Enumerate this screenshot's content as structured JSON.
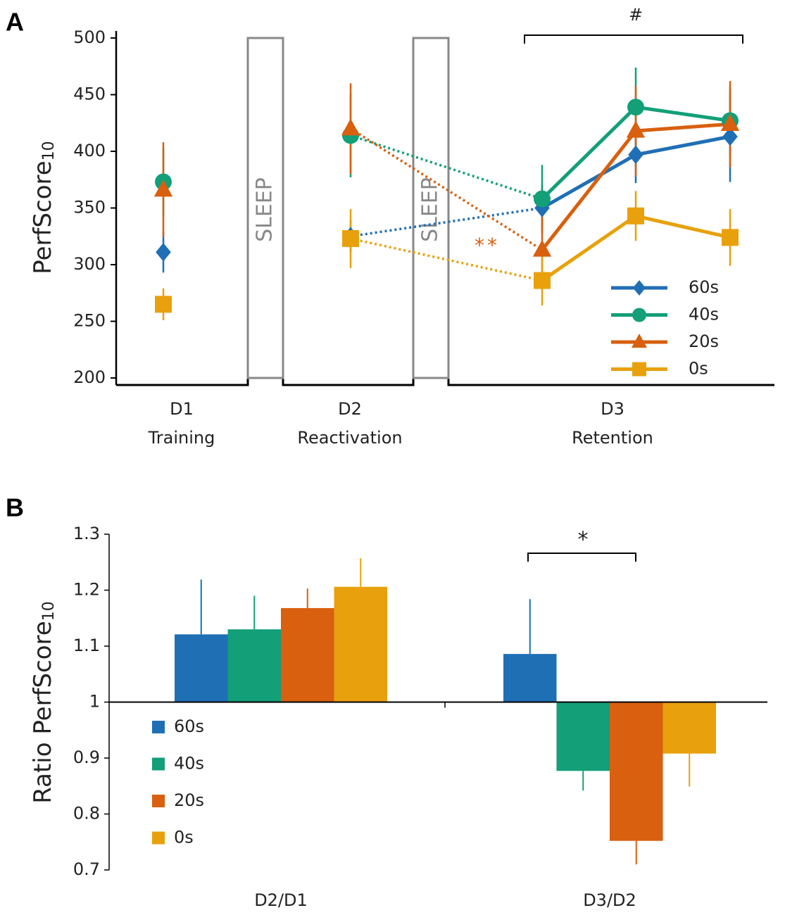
{
  "chart_data": [
    {
      "type": "line",
      "panel": "A",
      "y_label": "PerfScore",
      "y_label_sub": "10",
      "categories": [
        [
          "D1",
          "Training"
        ],
        [
          "D2",
          "Reactivation"
        ],
        null,
        [
          "D3",
          "Retention"
        ],
        null
      ],
      "ylim": [
        200,
        500
      ],
      "yticks": [
        200,
        250,
        300,
        350,
        400,
        450,
        500
      ],
      "blocks": [
        "SLEEP",
        "SLEEP"
      ],
      "annotations": [
        "#",
        "**"
      ],
      "legend": "lower right",
      "series": [
        {
          "name": "60s",
          "color": "#1f6fb5",
          "marker": "diamond",
          "values": [
            311,
            325,
            350,
            397,
            413
          ],
          "errors": [
            18,
            14,
            20,
            25,
            40
          ]
        },
        {
          "name": "40s",
          "color": "#139f78",
          "marker": "circle",
          "values": [
            373,
            414,
            358,
            439,
            427
          ],
          "errors": [
            30,
            37,
            30,
            35,
            30
          ]
        },
        {
          "name": "20s",
          "color": "#d8600f",
          "marker": "triangle",
          "values": [
            366,
            420,
            313,
            418,
            424
          ],
          "errors": [
            42,
            40,
            35,
            40,
            38
          ]
        },
        {
          "name": "0s",
          "color": "#e8a10c",
          "marker": "square",
          "values": [
            265,
            323,
            286,
            343,
            324
          ],
          "errors": [
            14,
            26,
            22,
            22,
            25
          ]
        }
      ]
    },
    {
      "type": "bar",
      "panel": "B",
      "y_label": "Ratio PerfScore",
      "y_label_sub": "10",
      "categories": [
        "D2/D1",
        "D3/D2"
      ],
      "ylim": [
        0.7,
        1.3
      ],
      "yticks": [
        0.7,
        0.8,
        0.9,
        1,
        1.1,
        1.2,
        1.3
      ],
      "baseline": 1,
      "annotations": [
        "*"
      ],
      "legend": "lower left",
      "series": [
        {
          "name": "60s",
          "color": "#1f6fb5",
          "values": [
            1.121,
            1.086
          ],
          "errors": [
            0.098,
            0.098
          ]
        },
        {
          "name": "40s",
          "color": "#139f78",
          "values": [
            1.13,
            0.877
          ],
          "errors": [
            0.06,
            0.035
          ]
        },
        {
          "name": "20s",
          "color": "#d8600f",
          "values": [
            1.168,
            0.752
          ],
          "errors": [
            0.035,
            0.042
          ]
        },
        {
          "name": "0s",
          "color": "#e8a10c",
          "values": [
            1.206,
            0.908
          ],
          "errors": [
            0.051,
            0.059
          ]
        }
      ]
    }
  ]
}
